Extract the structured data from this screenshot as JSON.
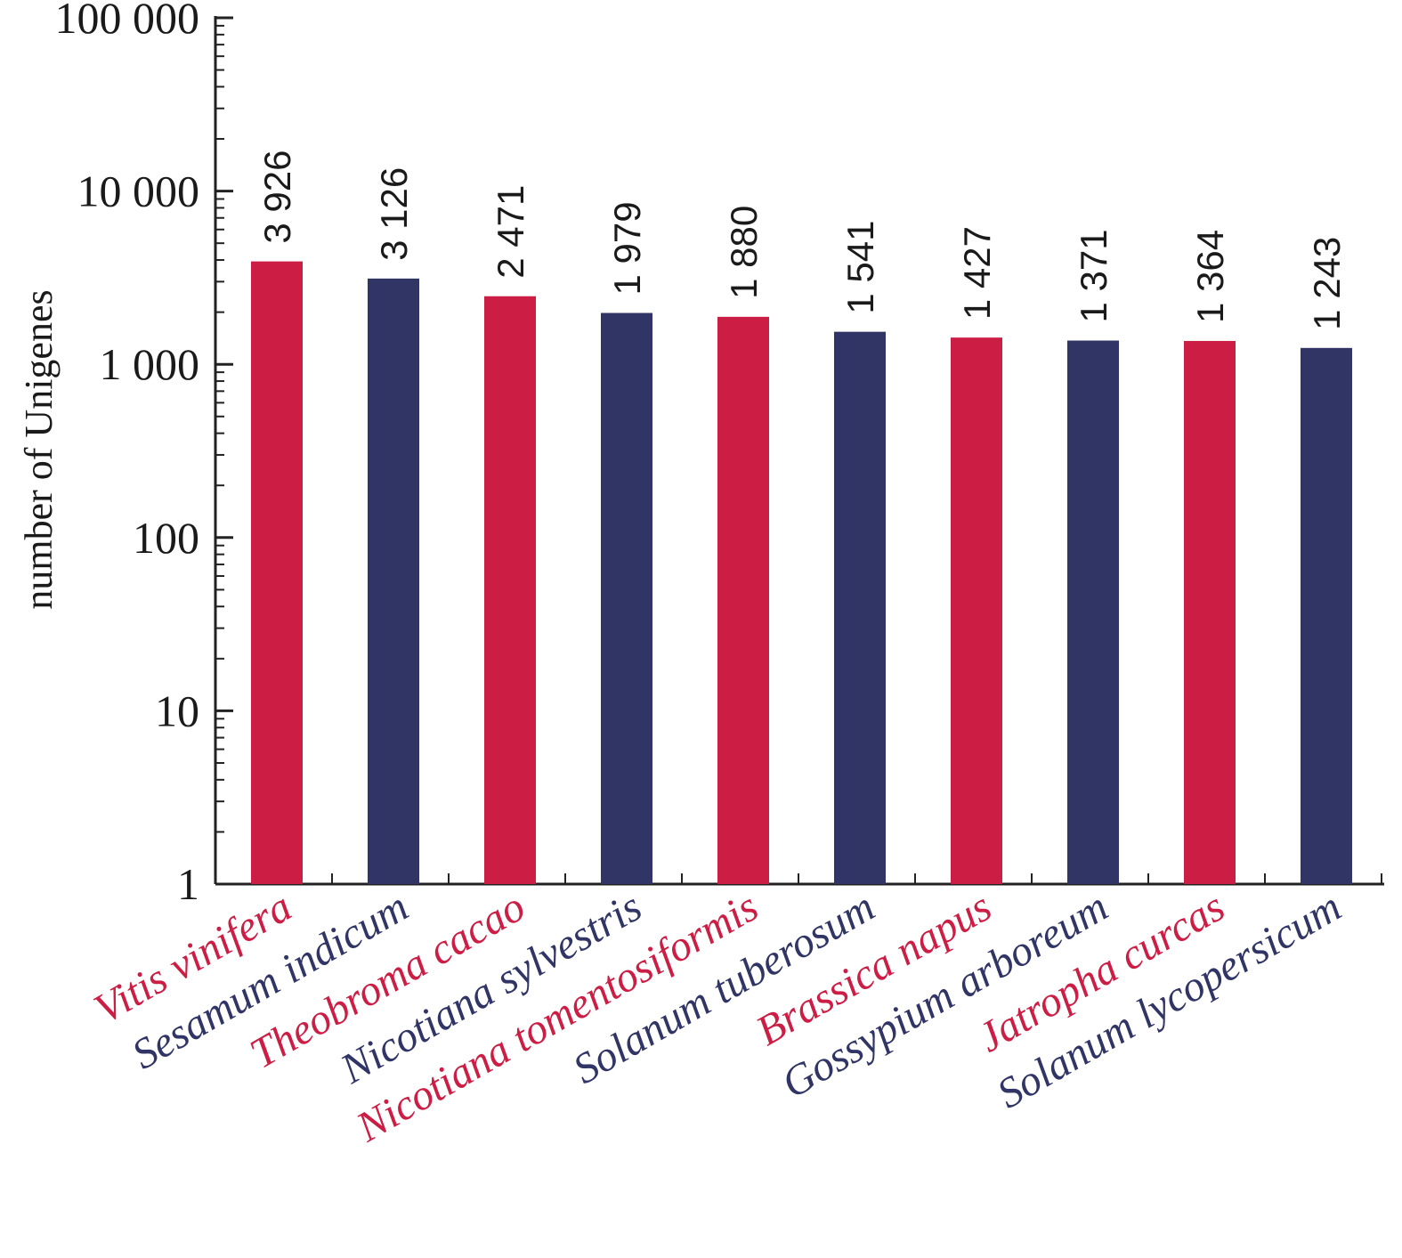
{
  "chart_data": {
    "type": "bar",
    "title": "",
    "xlabel": "",
    "ylabel": "number of Unigenes",
    "yscale": "log",
    "ylim": [
      1,
      100000
    ],
    "yticks": [
      1,
      10,
      100,
      1000,
      10000,
      100000
    ],
    "ytick_labels": [
      "1",
      "10",
      "100",
      "1 000",
      "10 000",
      "100 000"
    ],
    "categories": [
      "Vitis vinifera",
      "Sesamum indicum",
      "Theobroma cacao",
      "Nicotiana sylvestris",
      "Nicotiana tomentosiformis",
      "Solanum tuberosum",
      "Brassica napus",
      "Gossypium arboreum",
      "Jatropha curcas",
      "Solanum lycopersicum"
    ],
    "values": [
      3926,
      3126,
      2471,
      1979,
      1880,
      1541,
      1427,
      1371,
      1364,
      1243
    ],
    "value_labels": [
      "3 926",
      "3 126",
      "2 471",
      "1 979",
      "1 880",
      "1 541",
      "1 427",
      "1 371",
      "1 364",
      "1 243"
    ],
    "colors": [
      "#cc1e45",
      "#313566",
      "#cc1e45",
      "#313566",
      "#cc1e45",
      "#313566",
      "#cc1e45",
      "#313566",
      "#cc1e45",
      "#313566"
    ],
    "grid": false,
    "legend": "none"
  }
}
